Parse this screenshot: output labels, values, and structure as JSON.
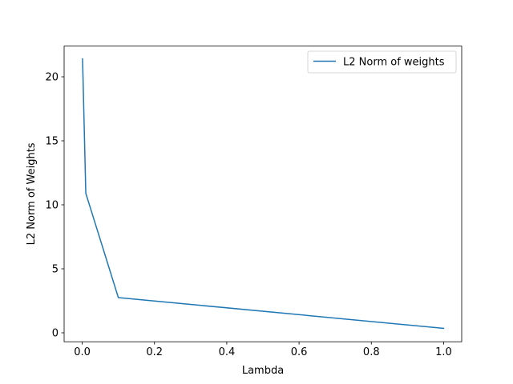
{
  "chart_data": {
    "type": "line",
    "title": "",
    "xlabel": "Lambda",
    "ylabel": "L2 Norm of Weights",
    "xlim": [
      -0.05,
      1.05
    ],
    "ylim": [
      -0.7,
      22.4
    ],
    "xticks": [
      0.0,
      0.2,
      0.4,
      0.6,
      0.8,
      1.0
    ],
    "xtick_labels": [
      "0.0",
      "0.2",
      "0.4",
      "0.6",
      "0.8",
      "1.0"
    ],
    "yticks": [
      0,
      5,
      10,
      15,
      20
    ],
    "ytick_labels": [
      "0",
      "5",
      "10",
      "15",
      "20"
    ],
    "grid": false,
    "legend": {
      "position": "upper right",
      "visible": true
    },
    "series": [
      {
        "name": "L2 Norm of weights",
        "color": "#1f77b4",
        "x": [
          0.001,
          0.01,
          0.1,
          1.0
        ],
        "y": [
          21.4,
          10.9,
          2.75,
          0.35
        ]
      }
    ]
  }
}
